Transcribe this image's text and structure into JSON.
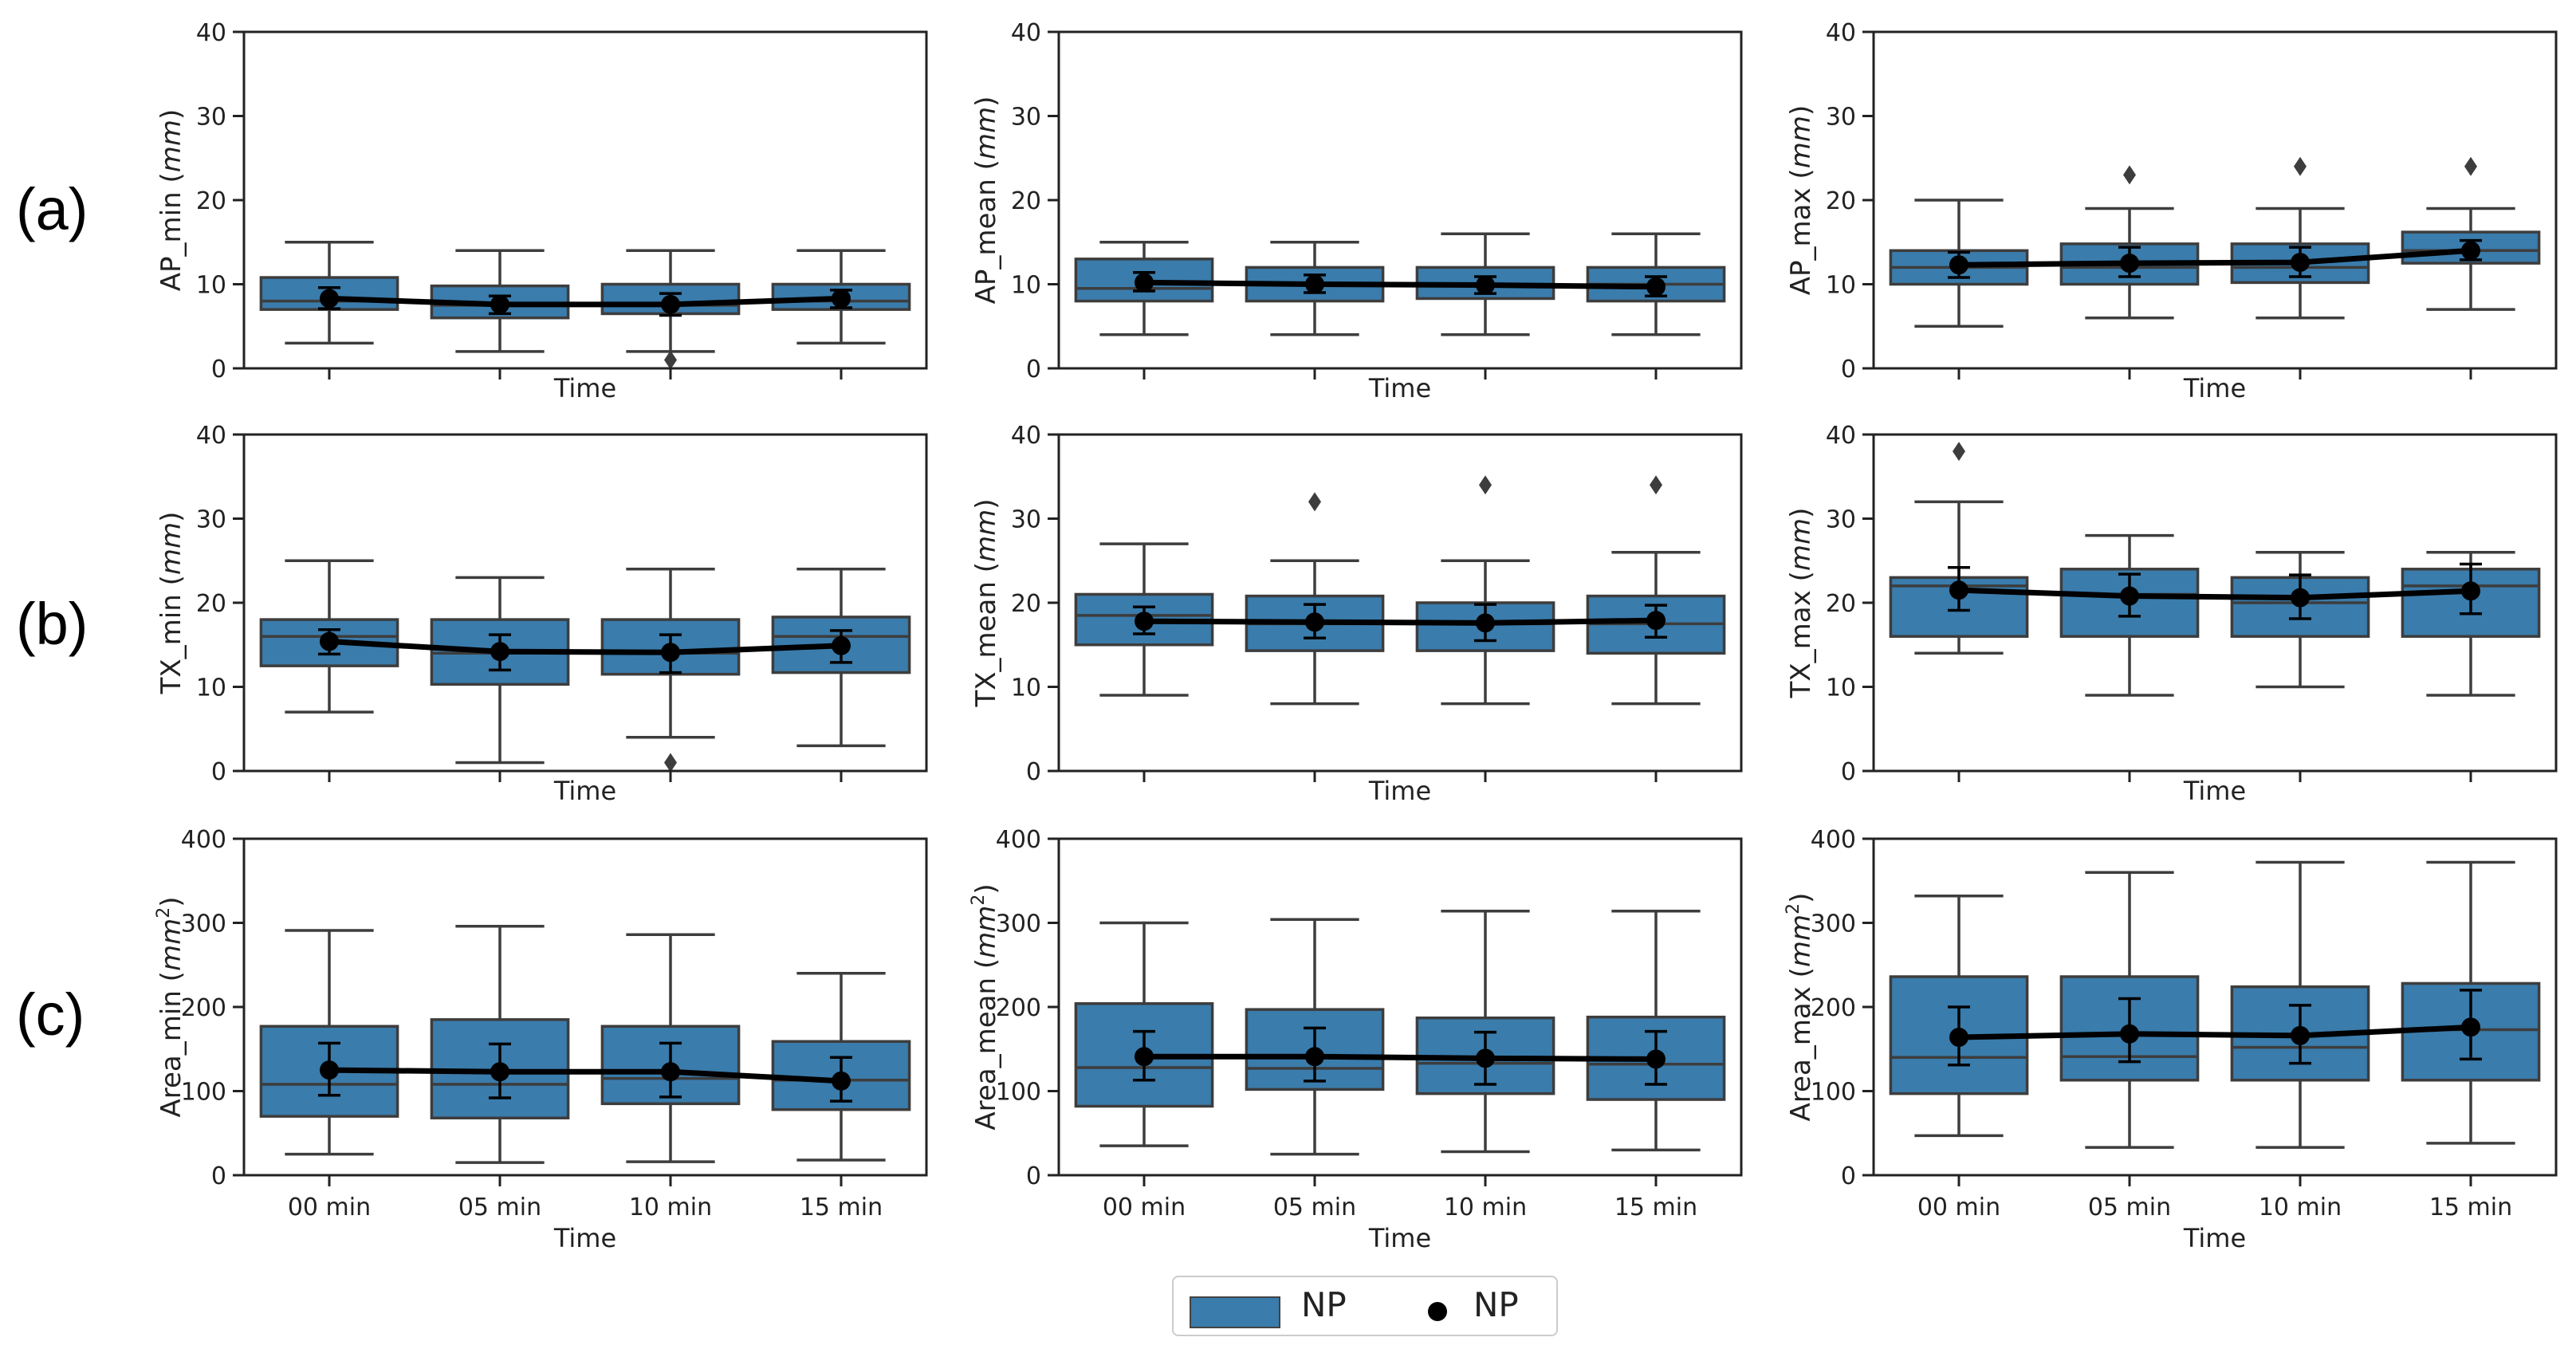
{
  "row_labels": [
    "(a)",
    "(b)",
    "(c)"
  ],
  "legend": {
    "box_label": "NP",
    "mean_label": "NP"
  },
  "colors": {
    "box_fill": "#3a7cac",
    "box_edge": "#3d3d3d",
    "mean": "#000000",
    "axis": "#222222"
  },
  "chart_data": [
    {
      "type": "box",
      "ylabel": "AP_min",
      "ylabel_unit": "mm",
      "ylabel_sup": "",
      "xlabel": "Time",
      "categories": [
        "00 min",
        "05 min",
        "10 min",
        "15 min"
      ],
      "ylim": [
        0,
        40
      ],
      "yticks": [
        0,
        10,
        20,
        30,
        40
      ],
      "show_xticklabels": false,
      "boxes": [
        {
          "whislo": 3,
          "q1": 7,
          "med": 8,
          "q3": 10.8,
          "whishi": 15,
          "fliers": []
        },
        {
          "whislo": 2,
          "q1": 6,
          "med": 7.5,
          "q3": 9.8,
          "whishi": 14,
          "fliers": []
        },
        {
          "whislo": 2,
          "q1": 6.5,
          "med": 7.5,
          "q3": 10,
          "whishi": 14,
          "fliers": [
            1
          ]
        },
        {
          "whislo": 3,
          "q1": 7,
          "med": 8,
          "q3": 10,
          "whishi": 14,
          "fliers": []
        }
      ],
      "means": [
        8.3,
        7.6,
        7.6,
        8.3
      ],
      "err_low": [
        7.1,
        6.5,
        6.3,
        7.2
      ],
      "err_high": [
        9.6,
        8.6,
        8.9,
        9.3
      ]
    },
    {
      "type": "box",
      "ylabel": "AP_mean",
      "ylabel_unit": "mm",
      "ylabel_sup": "",
      "xlabel": "Time",
      "categories": [
        "00 min",
        "05 min",
        "10 min",
        "15 min"
      ],
      "ylim": [
        0,
        40
      ],
      "yticks": [
        0,
        10,
        20,
        30,
        40
      ],
      "show_xticklabels": false,
      "boxes": [
        {
          "whislo": 4,
          "q1": 8,
          "med": 9.5,
          "q3": 13,
          "whishi": 15,
          "fliers": []
        },
        {
          "whislo": 4,
          "q1": 8,
          "med": 10,
          "q3": 12,
          "whishi": 15,
          "fliers": []
        },
        {
          "whislo": 4,
          "q1": 8.3,
          "med": 10,
          "q3": 12,
          "whishi": 16,
          "fliers": []
        },
        {
          "whislo": 4,
          "q1": 8,
          "med": 10,
          "q3": 12,
          "whishi": 16,
          "fliers": []
        }
      ],
      "means": [
        10.2,
        10.0,
        9.9,
        9.7
      ],
      "err_low": [
        9.2,
        9.0,
        8.9,
        8.6
      ],
      "err_high": [
        11.4,
        11.1,
        10.9,
        10.9
      ]
    },
    {
      "type": "box",
      "ylabel": "AP_max",
      "ylabel_unit": "mm",
      "ylabel_sup": "",
      "xlabel": "Time",
      "categories": [
        "00 min",
        "05 min",
        "10 min",
        "15 min"
      ],
      "ylim": [
        0,
        40
      ],
      "yticks": [
        0,
        10,
        20,
        30,
        40
      ],
      "show_xticklabels": false,
      "boxes": [
        {
          "whislo": 5,
          "q1": 10,
          "med": 12,
          "q3": 14,
          "whishi": 20,
          "fliers": []
        },
        {
          "whislo": 6,
          "q1": 10,
          "med": 12,
          "q3": 14.8,
          "whishi": 19,
          "fliers": [
            23
          ]
        },
        {
          "whislo": 6,
          "q1": 10.2,
          "med": 12,
          "q3": 14.8,
          "whishi": 19,
          "fliers": [
            24
          ]
        },
        {
          "whislo": 7,
          "q1": 12.5,
          "med": 14,
          "q3": 16.2,
          "whishi": 19,
          "fliers": [
            24
          ]
        }
      ],
      "means": [
        12.3,
        12.5,
        12.6,
        14.0
      ],
      "err_low": [
        10.8,
        10.9,
        10.9,
        12.9
      ],
      "err_high": [
        13.8,
        14.4,
        14.4,
        15.2
      ]
    },
    {
      "type": "box",
      "ylabel": "TX_min",
      "ylabel_unit": "mm",
      "ylabel_sup": "",
      "xlabel": "Time",
      "categories": [
        "00 min",
        "05 min",
        "10 min",
        "15 min"
      ],
      "ylim": [
        0,
        40
      ],
      "yticks": [
        0,
        10,
        20,
        30,
        40
      ],
      "show_xticklabels": false,
      "boxes": [
        {
          "whislo": 7,
          "q1": 12.5,
          "med": 16,
          "q3": 18,
          "whishi": 25,
          "fliers": []
        },
        {
          "whislo": 1,
          "q1": 10.3,
          "med": 14,
          "q3": 18,
          "whishi": 23,
          "fliers": []
        },
        {
          "whislo": 4,
          "q1": 11.5,
          "med": 14,
          "q3": 18,
          "whishi": 24,
          "fliers": [
            1
          ]
        },
        {
          "whislo": 3,
          "q1": 11.7,
          "med": 16,
          "q3": 18.3,
          "whishi": 24,
          "fliers": []
        }
      ],
      "means": [
        15.4,
        14.2,
        14.1,
        14.9
      ],
      "err_low": [
        13.9,
        12.0,
        11.7,
        12.9
      ],
      "err_high": [
        16.8,
        16.2,
        16.2,
        16.7
      ]
    },
    {
      "type": "box",
      "ylabel": "TX_mean",
      "ylabel_unit": "mm",
      "ylabel_sup": "",
      "xlabel": "Time",
      "categories": [
        "00 min",
        "05 min",
        "10 min",
        "15 min"
      ],
      "ylim": [
        0,
        40
      ],
      "yticks": [
        0,
        10,
        20,
        30,
        40
      ],
      "show_xticklabels": false,
      "boxes": [
        {
          "whislo": 9,
          "q1": 15,
          "med": 18.5,
          "q3": 21,
          "whishi": 27,
          "fliers": []
        },
        {
          "whislo": 8,
          "q1": 14.3,
          "med": 17.5,
          "q3": 20.8,
          "whishi": 25,
          "fliers": [
            32
          ]
        },
        {
          "whislo": 8,
          "q1": 14.3,
          "med": 17.5,
          "q3": 20,
          "whishi": 25,
          "fliers": [
            34
          ]
        },
        {
          "whislo": 8,
          "q1": 14,
          "med": 17.5,
          "q3": 20.8,
          "whishi": 26,
          "fliers": [
            34
          ]
        }
      ],
      "means": [
        17.8,
        17.7,
        17.6,
        17.9
      ],
      "err_low": [
        16.3,
        15.8,
        15.5,
        15.9
      ],
      "err_high": [
        19.5,
        19.8,
        19.8,
        19.7
      ]
    },
    {
      "type": "box",
      "ylabel": "TX_max",
      "ylabel_unit": "mm",
      "ylabel_sup": "",
      "xlabel": "Time",
      "categories": [
        "00 min",
        "05 min",
        "10 min",
        "15 min"
      ],
      "ylim": [
        0,
        40
      ],
      "yticks": [
        0,
        10,
        20,
        30,
        40
      ],
      "show_xticklabels": false,
      "boxes": [
        {
          "whislo": 14,
          "q1": 16,
          "med": 22,
          "q3": 23,
          "whishi": 32,
          "fliers": [
            38
          ]
        },
        {
          "whislo": 9,
          "q1": 16,
          "med": 21,
          "q3": 24,
          "whishi": 28,
          "fliers": []
        },
        {
          "whislo": 10,
          "q1": 16,
          "med": 20,
          "q3": 23,
          "whishi": 26,
          "fliers": []
        },
        {
          "whislo": 9,
          "q1": 16,
          "med": 22,
          "q3": 24,
          "whishi": 26,
          "fliers": []
        }
      ],
      "means": [
        21.5,
        20.8,
        20.6,
        21.4
      ],
      "err_low": [
        19.1,
        18.4,
        18.1,
        18.7
      ],
      "err_high": [
        24.2,
        23.4,
        23.3,
        24.6
      ]
    },
    {
      "type": "box",
      "ylabel": "Area_min",
      "ylabel_unit": "mm",
      "ylabel_sup": "2",
      "xlabel": "Time",
      "categories": [
        "00 min",
        "05 min",
        "10 min",
        "15 min"
      ],
      "ylim": [
        0,
        400
      ],
      "yticks": [
        0,
        100,
        200,
        300,
        400
      ],
      "show_xticklabels": true,
      "boxes": [
        {
          "whislo": 25,
          "q1": 70,
          "med": 108,
          "q3": 177,
          "whishi": 291,
          "fliers": []
        },
        {
          "whislo": 15,
          "q1": 68,
          "med": 108,
          "q3": 185,
          "whishi": 296,
          "fliers": []
        },
        {
          "whislo": 16,
          "q1": 85,
          "med": 115,
          "q3": 177,
          "whishi": 286,
          "fliers": []
        },
        {
          "whislo": 18,
          "q1": 78,
          "med": 113,
          "q3": 159,
          "whishi": 240,
          "fliers": []
        }
      ],
      "means": [
        125,
        123,
        123,
        112
      ],
      "err_low": [
        95,
        92,
        93,
        88
      ],
      "err_high": [
        157,
        156,
        157,
        140
      ]
    },
    {
      "type": "box",
      "ylabel": "Area_mean",
      "ylabel_unit": "mm",
      "ylabel_sup": "2",
      "xlabel": "Time",
      "categories": [
        "00 min",
        "05 min",
        "10 min",
        "15 min"
      ],
      "ylim": [
        0,
        400
      ],
      "yticks": [
        0,
        100,
        200,
        300,
        400
      ],
      "show_xticklabels": true,
      "boxes": [
        {
          "whislo": 35,
          "q1": 82,
          "med": 128,
          "q3": 204,
          "whishi": 300,
          "fliers": []
        },
        {
          "whislo": 25,
          "q1": 102,
          "med": 127,
          "q3": 197,
          "whishi": 304,
          "fliers": []
        },
        {
          "whislo": 28,
          "q1": 97,
          "med": 133,
          "q3": 187,
          "whishi": 314,
          "fliers": []
        },
        {
          "whislo": 30,
          "q1": 90,
          "med": 132,
          "q3": 188,
          "whishi": 314,
          "fliers": []
        }
      ],
      "means": [
        141,
        141,
        139,
        138
      ],
      "err_low": [
        113,
        112,
        108,
        108
      ],
      "err_high": [
        171,
        175,
        170,
        171
      ]
    },
    {
      "type": "box",
      "ylabel": "Area_max",
      "ylabel_unit": "mm",
      "ylabel_sup": "2",
      "xlabel": "Time",
      "categories": [
        "00 min",
        "05 min",
        "10 min",
        "15 min"
      ],
      "ylim": [
        0,
        400
      ],
      "yticks": [
        0,
        100,
        200,
        300,
        400
      ],
      "show_xticklabels": true,
      "boxes": [
        {
          "whislo": 47,
          "q1": 97,
          "med": 140,
          "q3": 236,
          "whishi": 332,
          "fliers": []
        },
        {
          "whislo": 33,
          "q1": 113,
          "med": 141,
          "q3": 236,
          "whishi": 360,
          "fliers": []
        },
        {
          "whislo": 33,
          "q1": 113,
          "med": 152,
          "q3": 224,
          "whishi": 372,
          "fliers": []
        },
        {
          "whislo": 38,
          "q1": 113,
          "med": 173,
          "q3": 228,
          "whishi": 372,
          "fliers": []
        }
      ],
      "means": [
        164,
        168,
        166,
        176
      ],
      "err_low": [
        131,
        135,
        133,
        138
      ],
      "err_high": [
        200,
        210,
        202,
        220
      ]
    }
  ]
}
